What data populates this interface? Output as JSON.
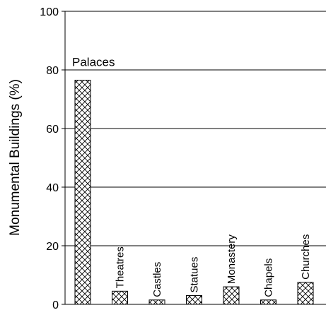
{
  "chart_data": {
    "type": "bar",
    "title": "",
    "xlabel": "",
    "ylabel": "Monumental Buildings (%)",
    "ylim": [
      0,
      100
    ],
    "yticks": [
      0,
      20,
      40,
      60,
      80,
      100
    ],
    "grid": true,
    "categories": [
      "Palaces",
      "Theatres",
      "Castles",
      "Statues",
      "Monastery",
      "Chapels",
      "Churches"
    ],
    "values": [
      76.5,
      4.5,
      1.5,
      3,
      6,
      1.5,
      7.5
    ],
    "bar_pattern": "hatched",
    "colors": {
      "bar_fill": "#ffffff",
      "hatch": "#000000",
      "grid": "#000000"
    }
  }
}
